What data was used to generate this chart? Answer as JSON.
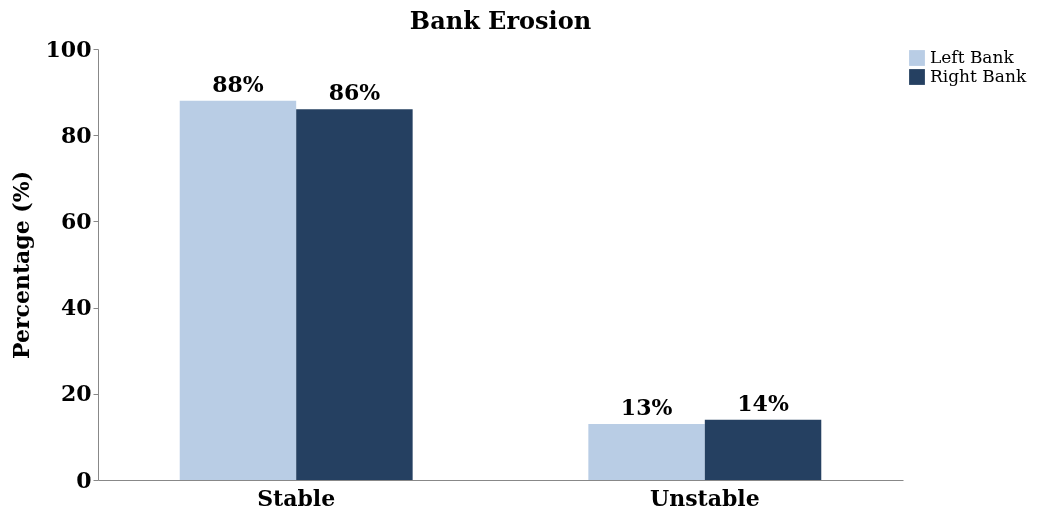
{
  "chart_data": {
    "type": "bar",
    "title": "Bank Erosion",
    "ylabel": "Percentage (%)",
    "categories": [
      "Stable",
      "Unstable"
    ],
    "series": [
      {
        "name": "Left Bank",
        "color": "#b9cde5",
        "values": [
          88,
          13
        ],
        "value_labels": [
          "88%",
          "13%"
        ]
      },
      {
        "name": "Right Bank",
        "color": "#254061",
        "values": [
          86,
          14
        ],
        "value_labels": [
          "86%",
          "14%"
        ]
      }
    ],
    "ylim": [
      0,
      100
    ],
    "yticks": [
      0,
      20,
      40,
      60,
      80,
      100
    ],
    "grid": false,
    "legend": "right"
  }
}
